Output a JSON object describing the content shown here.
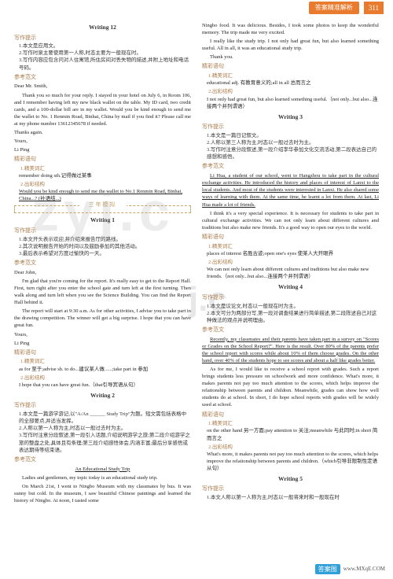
{
  "header": {
    "label": "答案精准解析",
    "pageNum": "311"
  },
  "col1": {
    "w12": {
      "title": "Writing 12",
      "sec_tip": "写作提示",
      "tips": [
        "1.本文是应用文。",
        "2.写作时泉主要使用第一人称,时态主要为一般现在时。",
        "3.写作内容应包含问对人住寓馆,所住房间对丢失物的描述,并附上地址和电话号码。"
      ],
      "sec_ref": "参考范文",
      "letter": {
        "greet": "Dear Mr. Smith,",
        "body": "Thank you so much for your reply. I stayed in your hotel on July 6, in Room 106, and I remember having left my new black wallet on the table. My ID card, two credit cards, and a 100-dollar bill are in my wallet. Would you be kind enough to send me the wallet to No. 1 Renmin Road, Binhai, China by mail if you find it? Please call me at my phone number 13612345678 if needed.",
        "thanks": "Thanks again.",
        "yours": "Yours,",
        "name": "Li Ping"
      },
      "sec_cite": "精彩语句",
      "cite1": "1.精美词汇",
      "cite1a": "remember doing sth.记得做过某事",
      "cite2": "2.出彩结构",
      "cite2a": "Would you be kind enough to send me the wallet to No.1 Renmin Road, Binhai, China...? (补语结...)"
    },
    "midbox": {
      "title": "三年模拟"
    },
    "w1": {
      "title": "Writing 1",
      "sec_tip": "写作提示",
      "tips": [
        "1.本文开头表示欢迎,并介绍来报告厅的路线。",
        "2.其次说明报告开始的时间以及鼓励参加的其他活动。",
        "3.最后表示希望对方度过愉快的一天。"
      ],
      "sec_ref": "参考范文",
      "letter": {
        "greet": "Dear John,",
        "body1": "I'm glad that you're coming for the report. It's really easy to get to the Report Hall. First, turn right after you enter the school gate and turn left at the first turning. Then walk along and turn left when you see the Science Building. You can find the Report Hall behind it.",
        "body2": "The report will start at 9:30 a.m. As for other activities, I advise you to take part in the drawing competition. The winner will get a big surprise. I hope that you can have great fun.",
        "yours": "Yours,",
        "name": "Li Ping"
      },
      "sec_cite": "精彩语句",
      "cite1": "1.精美词汇",
      "cite1a": "as for 至于;advise sb. to do...建议某人做......;take part in 参加",
      "cite2": "2.出彩结构",
      "cite2a": "I hope that you can have great fun.（that引导宾语从句）"
    },
    "w2": {
      "title": "Writing 2",
      "sec_tip": "写作提示",
      "tips": [
        "1.本文是一篇游学游记,以\"A/An ______ Study Trip\"为题。短文需包括表格中的全部要点,并适当发挥。",
        "2.人称以第一人称为主,时态以一般过去时为主。",
        "3.写作时注意分段叙述,第一段引入话题,介绍说明游学之旅;第二段介绍游学之旅的整盘之处,具体且有条理;第三段介绍感悟体会,内涵丰富;最后分享感悟或表达期待等结束语。"
      ],
      "sec_ref": "参考范文",
      "essay_title": "An Educational Study Trip",
      "essay1": "Ladies and gentlemen, my topic today is an educational study trip.",
      "essay2": "On March 21st, I went to Ningbo Museum with my classmates by bus. It was sunny but cold. In the museum, I saw beautiful Chinese paintings and learned the history of Ningbo. At noon, I tasted some"
    }
  },
  "col2": {
    "w2cont": {
      "essay3": "Ningbo food. It was delicious. Besides, I took some photos to keep the wonderful memory. The trip made me very excited.",
      "essay4": "I really like the study trip. I not only had great fun, but also learned something useful. All in all, it was an educational study trip.",
      "thanks": "Thank you.",
      "sec_cite": "精彩语句",
      "cite1": "1.精美词汇",
      "cite1a": "educational adj. 有教育意义的;all in all 总而言之",
      "cite2": "2.出彩结构",
      "cite2a": "I not only had great fun, but also learned something useful.（not only...but also...连接两个并列谓语）"
    },
    "w3": {
      "title": "Writing 3",
      "sec_tip": "写作提示",
      "tips": [
        "1.本文是一篇日记叙文。",
        "2.人称以第三人称为主,时态以一般过去时为主。",
        "3.写作时注意分段叙述,第一段介绍李华参加文化交流活动,第二段表达自己的感想和感悟。"
      ],
      "sec_ref": "参考范文",
      "essay1": "Li Hua, a student of our school, went to Hangzhou to take part in the cultural exchange activities. He introduced the history and places of interest of Lanxi to the local students. And most of the students were interested in Lanxi. He also shared some ways of learning with them. At the same time, he learnt a lot from them. At last, Li Hua made a lot of friends.",
      "essay2": "I think it's a very special experience. It is necessary for students to take part in cultural exchange activities. We can not only learn about different cultures and traditions but also make new friends. It's a good way to open our eyes to the world.",
      "sec_cite": "精彩语句",
      "cite1": "1.精美词汇",
      "cite1a": "places of interest 名胜古迹;open one's eyes 使某人大开眼界",
      "cite2": "2.出彩结构",
      "cite2a": "We can not only learn about different cultures and traditions but also make new friends.（not only...but also...连接两个并列谓语）"
    },
    "w4": {
      "title": "Writing 4",
      "sec_tip": "写作提示",
      "tips": [
        "1.本文是议论文,时态以一般现在时为主。",
        "2.本文可分为两部分写,第一段对调查结果进行简单描述,第二段陈述自己对这种做法的观点并说明理由。"
      ],
      "sec_ref": "参考范文",
      "essay1": "Recently, my classmates and their parents have taken part in a survey on \"Scores or Grades on the School Report?\". Here is the result. Over 80% of the parents prefer the school report with scores while about 10% of them choose grades. On the other hand, over 40% of the students hope to see scores and about a half like grades better.",
      "essay2": "As for me, I would like to receive a school report with grades. Such a report brings students less pressure on schoolwork and more confidence. What's more, it makes parents not pay too much attention to the scores, which helps improve the relationship between parents and children. Meanwhile, grades can show how well students do at school. In short, I do hope school reports with grades will be widely used at school.",
      "sec_cite": "精彩语句",
      "cite1": "1.精美词汇",
      "cite1a": "on the other hand 另一方面;pay attention to 关注;meanwhile 与此同时;in short 简而言之",
      "cite2": "2.出彩结构",
      "cite2a": "What's more, it makes parents not pay too much attention to the scores, which helps improve the relationship between parents and children.（which引导非限制性定语从句）"
    },
    "w5": {
      "title": "Writing 5",
      "sec_tip": "写作提示",
      "tips": [
        "1.本文人称以第一人称为主,时态以一般将来时和一般现在时"
      ]
    }
  },
  "footer": {
    "box": "答案图",
    "url": "www.MXqE.COM"
  }
}
